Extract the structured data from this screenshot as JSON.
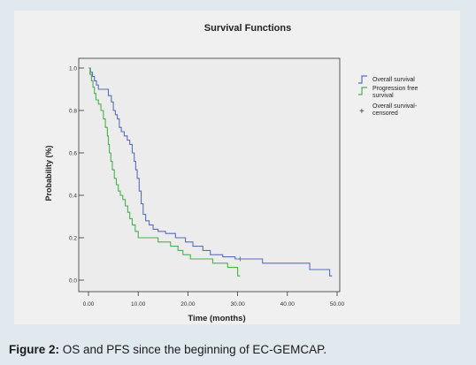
{
  "caption": {
    "label": "Figure 2:",
    "text": " OS and PFS since the beginning of EC-GEMCAP."
  },
  "chart_data": {
    "type": "line",
    "subtype": "kaplan-meier step",
    "title": "Survival Functions",
    "xlabel": "Time (months)",
    "ylabel": "Probability (%)",
    "xlim": [
      0,
      50
    ],
    "ylim": [
      0,
      1
    ],
    "x_ticks": [
      "0.00",
      "10.00",
      "20.00",
      "30.00",
      "40.00",
      "50.00"
    ],
    "y_ticks": [
      "0.0",
      "0.2",
      "0.4",
      "0.6",
      "0.8",
      "1.0"
    ],
    "x_tick_values": [
      0,
      10,
      20,
      30,
      40,
      50
    ],
    "y_tick_values": [
      0,
      0.2,
      0.4,
      0.6,
      0.8,
      1.0
    ],
    "legend": {
      "placement": "right",
      "entries": [
        {
          "label": "Overall survival",
          "symbol": "step"
        },
        {
          "label": "Progression free survival",
          "line1": "Progression free",
          "line2": "survival",
          "symbol": "step"
        },
        {
          "label": "Overall survival-censored",
          "line1": "Overall survival-",
          "line2": "censored",
          "symbol": "+"
        }
      ]
    },
    "series": [
      {
        "name": "Overall survival",
        "color": "#5a6ebc",
        "points": [
          [
            0,
            1.0
          ],
          [
            0.4,
            0.98
          ],
          [
            0.8,
            0.96
          ],
          [
            1.2,
            0.94
          ],
          [
            1.6,
            0.92
          ],
          [
            2.0,
            0.9
          ],
          [
            4.0,
            0.87
          ],
          [
            4.6,
            0.84
          ],
          [
            5.0,
            0.8
          ],
          [
            5.4,
            0.78
          ],
          [
            5.8,
            0.76
          ],
          [
            6.2,
            0.72
          ],
          [
            6.6,
            0.7
          ],
          [
            7.2,
            0.68
          ],
          [
            7.8,
            0.66
          ],
          [
            8.3,
            0.64
          ],
          [
            8.8,
            0.6
          ],
          [
            9.2,
            0.56
          ],
          [
            9.5,
            0.52
          ],
          [
            9.8,
            0.48
          ],
          [
            10.2,
            0.42
          ],
          [
            10.6,
            0.36
          ],
          [
            11.0,
            0.31
          ],
          [
            11.5,
            0.28
          ],
          [
            12.2,
            0.26
          ],
          [
            13.0,
            0.24
          ],
          [
            14.0,
            0.23
          ],
          [
            15.5,
            0.22
          ],
          [
            17.5,
            0.2
          ],
          [
            19.5,
            0.18
          ],
          [
            21.0,
            0.16
          ],
          [
            23.0,
            0.14
          ],
          [
            24.5,
            0.12
          ],
          [
            27.0,
            0.11
          ],
          [
            29.5,
            0.1
          ],
          [
            35.0,
            0.08
          ],
          [
            44.5,
            0.05
          ],
          [
            48.5,
            0.02
          ]
        ],
        "end_x": 49.0,
        "censored": [
          [
            30.5,
            0.1
          ]
        ]
      },
      {
        "name": "Progression free survival",
        "color": "#4caf50",
        "points": [
          [
            0,
            1.0
          ],
          [
            0.3,
            0.97
          ],
          [
            0.6,
            0.94
          ],
          [
            0.9,
            0.91
          ],
          [
            1.2,
            0.88
          ],
          [
            1.5,
            0.85
          ],
          [
            2.0,
            0.83
          ],
          [
            2.5,
            0.8
          ],
          [
            3.0,
            0.76
          ],
          [
            3.4,
            0.72
          ],
          [
            3.8,
            0.68
          ],
          [
            4.0,
            0.64
          ],
          [
            4.2,
            0.6
          ],
          [
            4.5,
            0.56
          ],
          [
            4.8,
            0.52
          ],
          [
            5.2,
            0.48
          ],
          [
            5.6,
            0.45
          ],
          [
            6.0,
            0.42
          ],
          [
            6.4,
            0.4
          ],
          [
            6.9,
            0.38
          ],
          [
            7.4,
            0.35
          ],
          [
            7.9,
            0.32
          ],
          [
            8.3,
            0.29
          ],
          [
            8.8,
            0.26
          ],
          [
            9.4,
            0.23
          ],
          [
            10.0,
            0.2
          ],
          [
            14.0,
            0.18
          ],
          [
            16.5,
            0.16
          ],
          [
            18.0,
            0.14
          ],
          [
            19.0,
            0.12
          ],
          [
            20.5,
            0.1
          ],
          [
            25.0,
            0.08
          ],
          [
            28.0,
            0.06
          ],
          [
            30.0,
            0.02
          ]
        ],
        "end_x": 30.5
      }
    ]
  }
}
